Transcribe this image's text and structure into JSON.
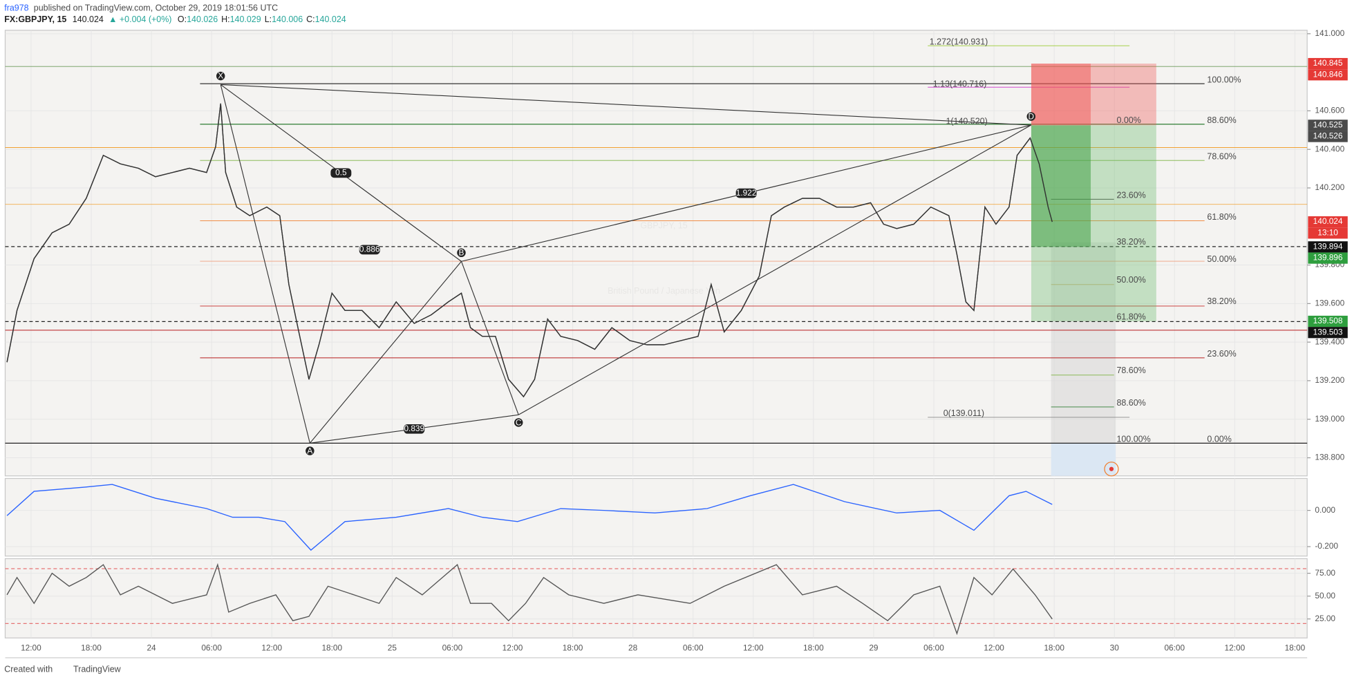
{
  "header": {
    "user": "fra978",
    "published": "published on TradingView.com, October 29, 2019 18:01:56 UTC",
    "symbol": "FX:GBPJPY, 15",
    "last": "140.024",
    "change": "▲ +0.004 (+0%)",
    "ohlc": [
      {
        "label": "O:",
        "value": "140.026"
      },
      {
        "label": "H:",
        "value": "140.029"
      },
      {
        "label": "L:",
        "value": "140.006"
      },
      {
        "label": "C:",
        "value": "140.024"
      }
    ]
  },
  "chart_data": [
    {
      "type": "line",
      "watermark": "GBPJPY, 15",
      "subtitle": "British Pound / Japanese Yen",
      "color": "#333333",
      "xlim": [
        -2.58,
        127.22
      ],
      "ylim": [
        138.706,
        141.018
      ],
      "yticks": [
        {
          "value": 141.0,
          "label": "141.000"
        },
        {
          "value": 140.6,
          "label": "140.600"
        },
        {
          "value": 140.4,
          "label": "140.400"
        },
        {
          "value": 140.2,
          "label": "140.200"
        },
        {
          "value": 139.8,
          "label": "139.800"
        },
        {
          "value": 139.6,
          "label": "139.600"
        },
        {
          "value": 139.4,
          "label": "139.400"
        },
        {
          "value": 139.2,
          "label": "139.200"
        },
        {
          "value": 139.0,
          "label": "139.000"
        },
        {
          "value": 138.8,
          "label": "138.800"
        }
      ],
      "x": [
        -2.4,
        -1.4,
        0.3,
        2.1,
        3.8,
        5.5,
        7.2,
        8.9,
        10.7,
        12.4,
        14.1,
        15.8,
        17.5,
        18.4,
        18.9,
        19.4,
        20.5,
        21.8,
        23.5,
        24.8,
        25.7,
        26.6,
        27.7,
        28.7,
        30.0,
        31.3,
        33.0,
        34.7,
        36.4,
        38.2,
        39.9,
        41.6,
        42.9,
        43.8,
        45.0,
        46.3,
        47.6,
        49.1,
        50.2,
        51.5,
        52.8,
        54.5,
        56.2,
        57.9,
        59.7,
        61.4,
        63.1,
        64.8,
        66.5,
        67.8,
        69.1,
        70.8,
        72.6,
        73.8,
        75.1,
        76.9,
        78.6,
        80.3,
        82.0,
        83.7,
        85.0,
        86.3,
        88.0,
        89.7,
        91.5,
        92.3,
        93.2,
        94.0,
        95.1,
        96.2,
        97.5,
        98.3,
        99.6,
        100.5,
        101.4,
        101.8
      ],
      "values": [
        139.296,
        139.564,
        139.833,
        139.967,
        140.012,
        140.146,
        140.369,
        140.325,
        140.302,
        140.258,
        140.28,
        140.302,
        140.28,
        140.414,
        140.638,
        140.28,
        140.101,
        140.056,
        140.101,
        140.056,
        139.699,
        139.475,
        139.207,
        139.386,
        139.654,
        139.564,
        139.564,
        139.475,
        139.609,
        139.497,
        139.542,
        139.609,
        139.654,
        139.475,
        139.43,
        139.43,
        139.207,
        139.117,
        139.207,
        139.52,
        139.43,
        139.408,
        139.363,
        139.475,
        139.408,
        139.386,
        139.386,
        139.408,
        139.43,
        139.699,
        139.453,
        139.564,
        139.743,
        140.056,
        140.101,
        140.146,
        140.146,
        140.101,
        140.101,
        140.123,
        140.012,
        139.989,
        140.012,
        140.101,
        140.056,
        139.855,
        139.609,
        139.564,
        140.101,
        140.012,
        140.101,
        140.369,
        140.459,
        140.325,
        140.101,
        140.024
      ],
      "pattern": {
        "labels": [
          "X",
          "A",
          "B",
          "C",
          "D"
        ],
        "x": [
          18.9,
          27.8,
          42.9,
          48.6,
          99.7
        ],
        "values": [
          140.736,
          138.876,
          139.819,
          139.023,
          140.526
        ],
        "ratios": [
          "0.886",
          "0.5",
          "1.922",
          "0.839"
        ]
      },
      "fib_labels": [
        "1.272(140.931)",
        "1.13(140.716)",
        "1(140.520)",
        "100.00%",
        "88.60%",
        "0.00%",
        "78.60%",
        "23.60%",
        "61.80%",
        "38.20%",
        "50.00%",
        "50.00%",
        "38.20%",
        "61.80%",
        "23.60%",
        "78.60%",
        "88.60%",
        "0(139.011)",
        "100.00%",
        "0.00%"
      ],
      "price_labels": [
        140.845,
        140.846,
        140.525,
        140.526,
        140.024,
        139.894,
        139.896,
        139.508,
        139.503
      ],
      "countdown": "13:10"
    },
    {
      "type": "line",
      "color": "#2962ff",
      "xlim": [
        -2.58,
        127.22
      ],
      "ylim": [
        -0.252,
        0.176
      ],
      "yticks": [
        {
          "value": 0,
          "label": "0.000"
        },
        {
          "value": -0.2,
          "label": "-0.200"
        }
      ],
      "x": [
        -2.4,
        0.3,
        5.5,
        8.1,
        12.4,
        17.5,
        20.1,
        22.7,
        25.3,
        27.9,
        31.3,
        36.4,
        41.6,
        45.0,
        48.5,
        52.8,
        57.1,
        62.2,
        67.4,
        71.7,
        76.0,
        81.1,
        86.3,
        90.6,
        94.0,
        97.5,
        99.2,
        101.8
      ],
      "values": [
        -0.029,
        0.105,
        0.129,
        0.143,
        0.067,
        0.01,
        -0.038,
        -0.038,
        -0.062,
        -0.219,
        -0.062,
        -0.038,
        0.01,
        -0.038,
        -0.062,
        0.01,
        0,
        -0.014,
        0.01,
        0.081,
        0.143,
        0.048,
        -0.014,
        0,
        -0.11,
        0.081,
        0.105,
        0.033
      ]
    },
    {
      "type": "line",
      "color": "#555555",
      "xlim": [
        -2.58,
        127.22
      ],
      "ylim": [
        4.2,
        91.0
      ],
      "bands": [
        20,
        80
      ],
      "yticks": [
        {
          "value": 75,
          "label": "75.00"
        },
        {
          "value": 50,
          "label": "50.00"
        },
        {
          "value": 25,
          "label": "25.00"
        }
      ],
      "xticks": [
        {
          "value": 0,
          "label": "12:00"
        },
        {
          "value": 6,
          "label": "18:00"
        },
        {
          "value": 12,
          "label": "24"
        },
        {
          "value": 18,
          "label": "06:00"
        },
        {
          "value": 24,
          "label": "12:00"
        },
        {
          "value": 30,
          "label": "18:00"
        },
        {
          "value": 36,
          "label": "25"
        },
        {
          "value": 42,
          "label": "06:00"
        },
        {
          "value": 48,
          "label": "12:00"
        },
        {
          "value": 54,
          "label": "18:00"
        },
        {
          "value": 60,
          "label": "28"
        },
        {
          "value": 66,
          "label": "06:00"
        },
        {
          "value": 72,
          "label": "12:00"
        },
        {
          "value": 78,
          "label": "18:00"
        },
        {
          "value": 84,
          "label": "29"
        },
        {
          "value": 90,
          "label": "06:00"
        },
        {
          "value": 96,
          "label": "12:00"
        },
        {
          "value": 102,
          "label": "18:00"
        },
        {
          "value": 108,
          "label": "30"
        },
        {
          "value": 114,
          "label": "06:00"
        },
        {
          "value": 120,
          "label": "12:00"
        },
        {
          "value": 126,
          "label": "18:00"
        }
      ],
      "x": [
        -2.4,
        -1.4,
        0.3,
        2.1,
        3.8,
        5.5,
        7.2,
        8.9,
        10.7,
        14.1,
        17.5,
        18.6,
        19.7,
        21.8,
        24.4,
        26.1,
        27.7,
        29.6,
        32.2,
        34.7,
        36.4,
        39.0,
        42.5,
        43.8,
        45.9,
        47.6,
        49.3,
        51.1,
        53.6,
        57.1,
        60.5,
        65.7,
        69.1,
        74.3,
        76.9,
        80.3,
        82.9,
        85.4,
        88.0,
        90.6,
        92.3,
        94.0,
        95.8,
        97.9,
        100.1,
        101.8
      ],
      "values": [
        51.4,
        70.3,
        42.0,
        75.0,
        60.8,
        70.3,
        84.4,
        51.4,
        60.8,
        42.0,
        51.4,
        84.4,
        32.5,
        42.0,
        51.4,
        23.1,
        27.8,
        60.8,
        51.4,
        42.0,
        70.3,
        51.4,
        84.4,
        42.0,
        42.0,
        23.1,
        42.0,
        70.3,
        51.4,
        42.0,
        51.4,
        42.0,
        60.8,
        84.4,
        51.4,
        60.8,
        42.0,
        23.1,
        51.4,
        60.8,
        9.0,
        70.3,
        51.4,
        79.7,
        51.4,
        25.0
      ]
    }
  ],
  "footer": {
    "created": "Created with",
    "brand": "TradingView"
  }
}
